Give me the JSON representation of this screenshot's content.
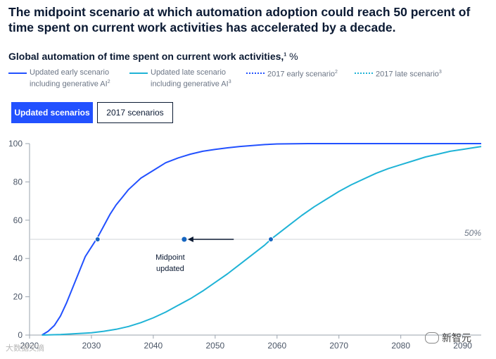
{
  "headline": "The midpoint scenario at which automation adoption could reach 50 percent of time spent on current work activities has accelerated by a decade.",
  "subtitle": "Global automation of time spent on current work activities,",
  "subtitle_footnote": "1",
  "subtitle_unit": "%",
  "legend": [
    {
      "line1": "Updated early scenario",
      "line2": "including generative AI",
      "footnote": "2",
      "color": "#2251ff",
      "style": "solid"
    },
    {
      "line1": "Updated late scenario",
      "line2": "including generative AI",
      "footnote": "3",
      "color": "#1fb3d6",
      "style": "solid"
    },
    {
      "line1": "2017 early scenario",
      "line2": "",
      "footnote": "2",
      "color": "#2251ff",
      "style": "dotted"
    },
    {
      "line1": "2017 late scenario",
      "line2": "",
      "footnote": "3",
      "color": "#1fb3d6",
      "style": "dotted"
    }
  ],
  "buttons": {
    "updated": "Updated scenarios",
    "y2017": "2017 scenarios"
  },
  "colors": {
    "early": "#2251ff",
    "late": "#1fb3d6",
    "arrow": "#0b1a33",
    "midpoint": "#1565c0",
    "reference": "#d0d4da"
  },
  "chart_data": {
    "type": "line",
    "xlim": [
      2020,
      2093
    ],
    "ylim": [
      0,
      100
    ],
    "x_ticks": [
      2020,
      2030,
      2040,
      2050,
      2060,
      2070,
      2080,
      2090
    ],
    "y_ticks": [
      0,
      20,
      40,
      60,
      80,
      100
    ],
    "grid": false,
    "reference_line": {
      "y": 50,
      "label": "50%"
    },
    "series": [
      {
        "name": "Updated early scenario including generative AI",
        "x": [
          2022,
          2023,
          2024,
          2025,
          2026,
          2027,
          2028,
          2029,
          2030,
          2031,
          2032,
          2033,
          2034,
          2035,
          2036,
          2038,
          2040,
          2042,
          2044,
          2046,
          2048,
          2050,
          2052,
          2054,
          2056,
          2058,
          2060,
          2065,
          2070,
          2080,
          2093
        ],
        "y": [
          0,
          2,
          5,
          10,
          17,
          25,
          33,
          41,
          46,
          51,
          57,
          63,
          68,
          72,
          76,
          82,
          86,
          90,
          92.5,
          94.5,
          96,
          97,
          97.8,
          98.5,
          99,
          99.5,
          99.8,
          100,
          100,
          100,
          100
        ]
      },
      {
        "name": "Updated late scenario including generative AI",
        "x": [
          2022,
          2025,
          2028,
          2030,
          2032,
          2034,
          2036,
          2038,
          2040,
          2042,
          2044,
          2046,
          2048,
          2050,
          2052,
          2054,
          2056,
          2058,
          2059,
          2060,
          2062,
          2064,
          2066,
          2068,
          2070,
          2072,
          2074,
          2076,
          2078,
          2080,
          2082,
          2084,
          2086,
          2088,
          2090,
          2093
        ],
        "y": [
          0,
          0.3,
          0.8,
          1.2,
          2,
          3,
          4.5,
          6.5,
          9,
          12,
          15.5,
          19,
          23,
          27.5,
          32,
          37,
          42,
          47,
          50,
          52.5,
          57.5,
          62.5,
          67,
          71,
          75,
          78.5,
          81.5,
          84.5,
          87,
          89,
          91,
          93,
          94.5,
          96,
          97,
          98.5
        ]
      }
    ],
    "midpoints": [
      {
        "x": 2031,
        "y": 50,
        "series": "early"
      },
      {
        "x": 2059,
        "y": 50,
        "series": "late"
      }
    ],
    "annotation": {
      "text_line1": "Midpoint",
      "text_line2": "updated",
      "x": 2045,
      "y": 50,
      "arrow_from_x": 2053
    }
  },
  "watermarks": {
    "left": "大数据文摘",
    "right": "新智元"
  }
}
